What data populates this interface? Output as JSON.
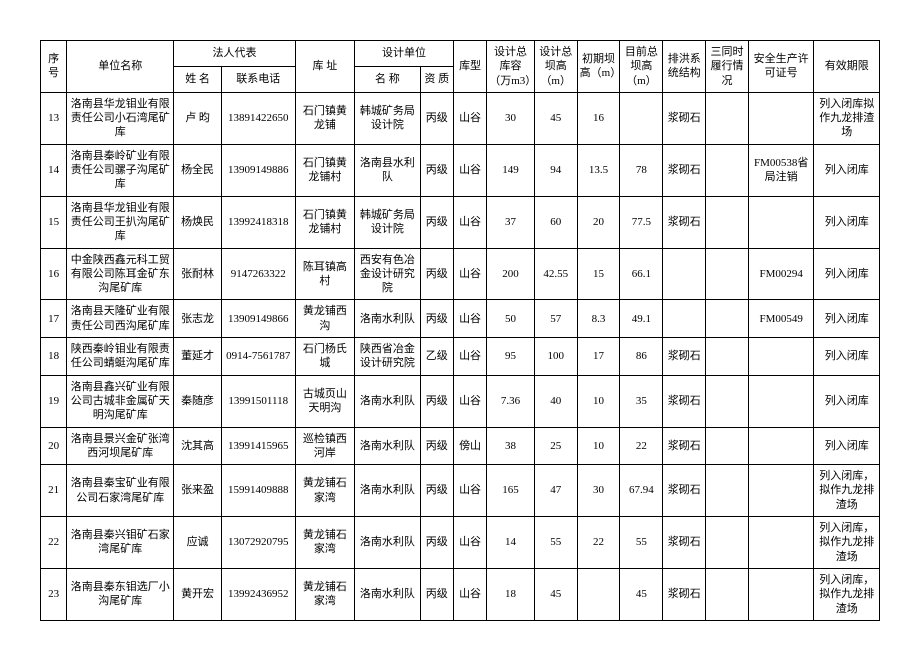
{
  "headers": {
    "seq": "序号",
    "company": "单位名称",
    "legal_rep": "法人代表",
    "rep_name": "姓 名",
    "rep_phone": "联系电话",
    "address": "库 址",
    "design_unit": "设计单位",
    "design_name": "名 称",
    "design_qual": "资 质",
    "type": "库型",
    "capacity": "设计总库容（万m3）",
    "dam_h": "设计总坝高（m）",
    "init_h": "初期坝高（m）",
    "cur_h": "目前总坝高（m）",
    "flood": "排洪系统结构",
    "three_same": "三同时履行情况",
    "license": "安全生产许可证号",
    "valid": "有效期限"
  },
  "rows": [
    {
      "seq": "13",
      "company": "洛南县华龙钼业有限责任公司小石湾尾矿库",
      "rep_name": "卢 昀",
      "rep_phone": "13891422650",
      "address": "石门镇黄龙铺",
      "design_name": "韩城矿务局设计院",
      "design_qual": "丙级",
      "type": "山谷",
      "capacity": "30",
      "dam_h": "45",
      "init_h": "16",
      "cur_h": "",
      "flood": "浆砌石",
      "three_same": "",
      "license": "",
      "valid": "列入闭库拟作九龙排渣场"
    },
    {
      "seq": "14",
      "company": "洛南县秦岭矿业有限责任公司骡子沟尾矿库",
      "rep_name": "杨全民",
      "rep_phone": "13909149886",
      "address": "石门镇黄龙铺村",
      "design_name": "洛南县水利队",
      "design_qual": "丙级",
      "type": "山谷",
      "capacity": "149",
      "dam_h": "94",
      "init_h": "13.5",
      "cur_h": "78",
      "flood": "浆砌石",
      "three_same": "",
      "license": "FM00538省局注销",
      "valid": "列入闭库"
    },
    {
      "seq": "15",
      "company": "洛南县华龙钼业有限责任公司王扒沟尾矿库",
      "rep_name": "杨焕民",
      "rep_phone": "13992418318",
      "address": "石门镇黄龙铺村",
      "design_name": "韩城矿务局设计院",
      "design_qual": "丙级",
      "type": "山谷",
      "capacity": "37",
      "dam_h": "60",
      "init_h": "20",
      "cur_h": "77.5",
      "flood": "浆砌石",
      "three_same": "",
      "license": "",
      "valid": "列入闭库"
    },
    {
      "seq": "16",
      "company": "中金陕西鑫元科工贸有限公司陈耳金矿东沟尾矿库",
      "rep_name": "张耐林",
      "rep_phone": "9147263322",
      "address": "陈耳镇高村",
      "design_name": "西安有色冶金设计研究院",
      "design_qual": "丙级",
      "type": "山谷",
      "capacity": "200",
      "dam_h": "42.55",
      "init_h": "15",
      "cur_h": "66.1",
      "flood": "",
      "three_same": "",
      "license": "FM00294",
      "valid": "列入闭库"
    },
    {
      "seq": "17",
      "company": "洛南县天隆矿业有限责任公司西沟尾矿库",
      "rep_name": "张志龙",
      "rep_phone": "13909149866",
      "address": "黄龙铺西沟",
      "design_name": "洛南水利队",
      "design_qual": "丙级",
      "type": "山谷",
      "capacity": "50",
      "dam_h": "57",
      "init_h": "8.3",
      "cur_h": "49.1",
      "flood": "",
      "three_same": "",
      "license": "FM00549",
      "valid": "列入闭库"
    },
    {
      "seq": "18",
      "company": "陕西秦岭钼业有限责任公司蜻蜓沟尾矿库",
      "rep_name": "董延才",
      "rep_phone": "0914-7561787",
      "address": "石门杨氏城",
      "design_name": "陕西省冶金设计研究院",
      "design_qual": "乙级",
      "type": "山谷",
      "capacity": "95",
      "dam_h": "100",
      "init_h": "17",
      "cur_h": "86",
      "flood": "浆砌石",
      "three_same": "",
      "license": "",
      "valid": "列入闭库"
    },
    {
      "seq": "19",
      "company": "洛南县鑫兴矿业有限公司古城非金属矿天明沟尾矿库",
      "rep_name": "秦随彦",
      "rep_phone": "13991501118",
      "address": "古城页山天明沟",
      "design_name": "洛南水利队",
      "design_qual": "丙级",
      "type": "山谷",
      "capacity": "7.36",
      "dam_h": "40",
      "init_h": "10",
      "cur_h": "35",
      "flood": "浆砌石",
      "three_same": "",
      "license": "",
      "valid": "列入闭库"
    },
    {
      "seq": "20",
      "company": "洛南县景兴金矿张湾西河坝尾矿库",
      "rep_name": "沈其高",
      "rep_phone": "13991415965",
      "address": "巡检镇西河岸",
      "design_name": "洛南水利队",
      "design_qual": "丙级",
      "type": "傍山",
      "capacity": "38",
      "dam_h": "25",
      "init_h": "10",
      "cur_h": "22",
      "flood": "浆砌石",
      "three_same": "",
      "license": "",
      "valid": "列入闭库"
    },
    {
      "seq": "21",
      "company": "洛南县秦宝矿业有限公司石家湾尾矿库",
      "rep_name": "张来盈",
      "rep_phone": "15991409888",
      "address": "黄龙铺石家湾",
      "design_name": "洛南水利队",
      "design_qual": "丙级",
      "type": "山谷",
      "capacity": "165",
      "dam_h": "47",
      "init_h": "30",
      "cur_h": "67.94",
      "flood": "浆砌石",
      "three_same": "",
      "license": "",
      "valid": "列入闭库，拟作九龙排渣场"
    },
    {
      "seq": "22",
      "company": "洛南县秦兴钼矿石家湾尾矿库",
      "rep_name": "应诚",
      "rep_phone": "13072920795",
      "address": "黄龙铺石家湾",
      "design_name": "洛南水利队",
      "design_qual": "丙级",
      "type": "山谷",
      "capacity": "14",
      "dam_h": "55",
      "init_h": "22",
      "cur_h": "55",
      "flood": "浆砌石",
      "three_same": "",
      "license": "",
      "valid": "列入闭库，拟作九龙排渣场"
    },
    {
      "seq": "23",
      "company": "洛南县秦东钼选厂小沟尾矿库",
      "rep_name": "黄开宏",
      "rep_phone": "13992436952",
      "address": "黄龙铺石家湾",
      "design_name": "洛南水利队",
      "design_qual": "丙级",
      "type": "山谷",
      "capacity": "18",
      "dam_h": "45",
      "init_h": "",
      "cur_h": "45",
      "flood": "浆砌石",
      "three_same": "",
      "license": "",
      "valid": "列入闭库，拟作九龙排渣场"
    }
  ]
}
